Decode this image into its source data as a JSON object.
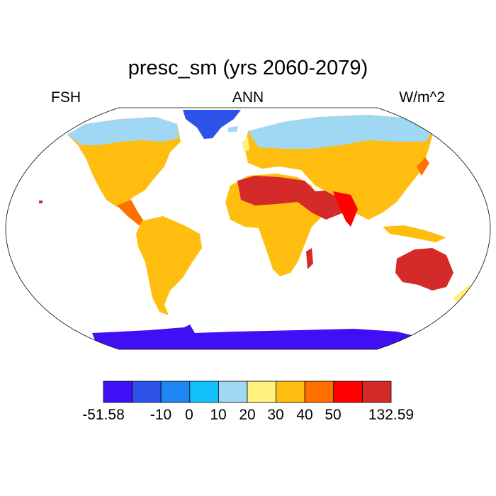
{
  "title": "presc_sm (yrs 2060-2079)",
  "left_label": "FSH",
  "center_label": "ANN",
  "right_label": "W/m^2",
  "colorbar": {
    "colors": [
      "#3f10f5",
      "#2d52e8",
      "#1e86f5",
      "#12c2fb",
      "#a0d7f3",
      "#fff080",
      "#ffbd10",
      "#ff7000",
      "#ff0000",
      "#d42a2a"
    ],
    "labels": [
      "-51.58",
      "-10",
      "0",
      "10",
      "20",
      "30",
      "40",
      "50",
      "132.59"
    ]
  },
  "regions": [
    {
      "name": "greenland",
      "color": "#2d52e8"
    },
    {
      "name": "antarctica",
      "color": "#3f10f5"
    },
    {
      "name": "north-america",
      "color": "#ffbd10"
    },
    {
      "name": "canada-north",
      "color": "#a0d7f3"
    },
    {
      "name": "south-america",
      "color": "#ffbd10"
    },
    {
      "name": "africa",
      "color": "#ffbd10"
    },
    {
      "name": "sahara-arabia",
      "color": "#d42a2a"
    },
    {
      "name": "eurasia",
      "color": "#ffbd10"
    },
    {
      "name": "siberia",
      "color": "#a0d7f3"
    },
    {
      "name": "australia",
      "color": "#d42a2a"
    }
  ]
}
